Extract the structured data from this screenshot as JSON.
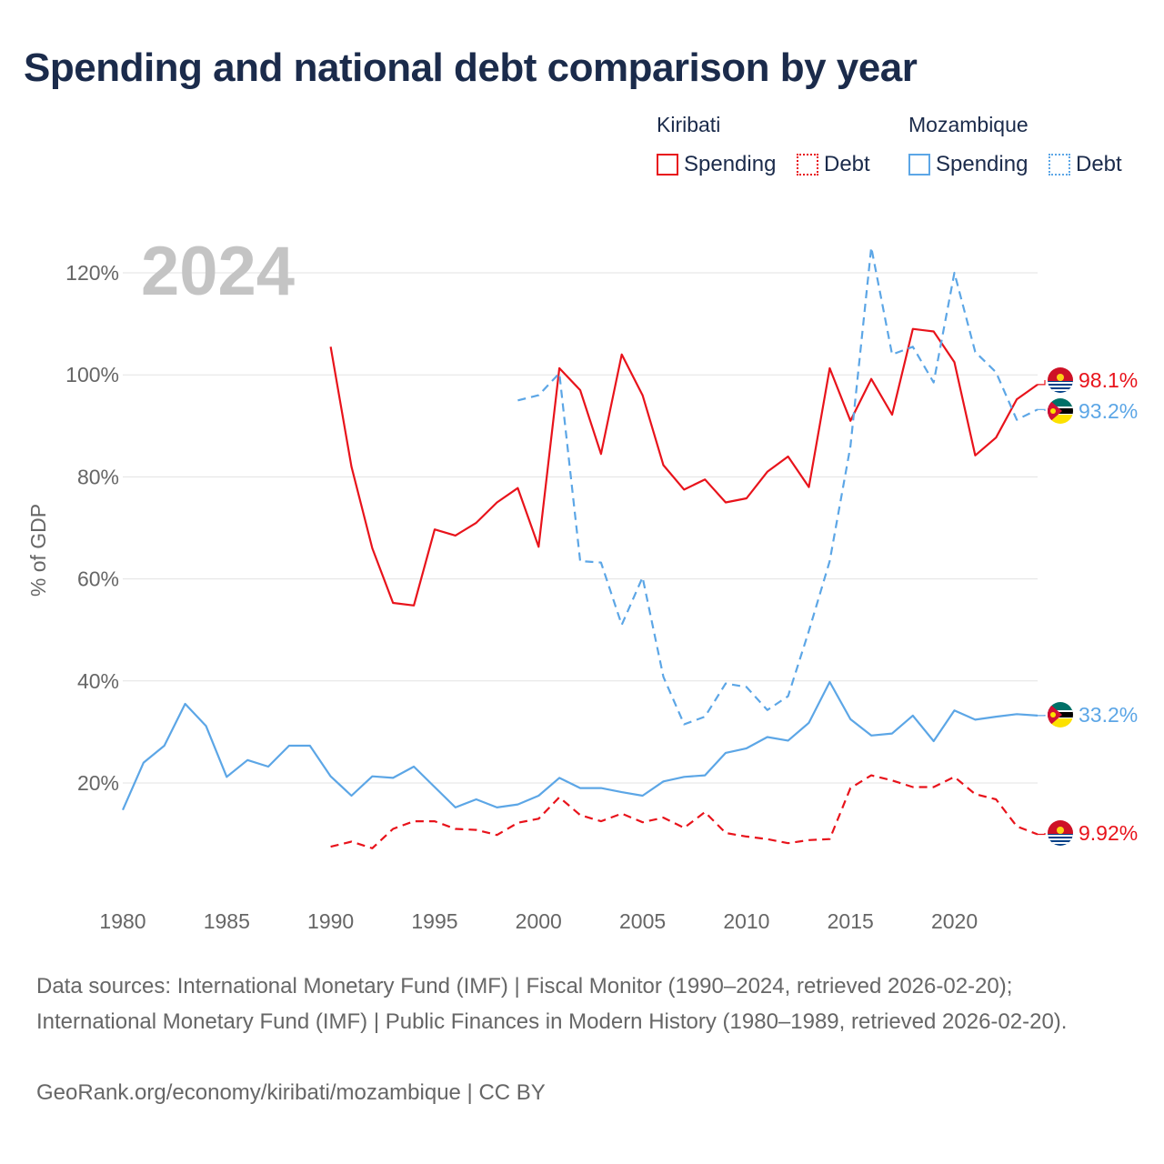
{
  "title": "Spending and national debt comparison by year",
  "legend": {
    "groups": [
      {
        "country": "Kiribati",
        "spending_label": "Spending",
        "debt_label": "Debt"
      },
      {
        "country": "Mozambique",
        "spending_label": "Spending",
        "debt_label": "Debt"
      }
    ]
  },
  "colors": {
    "kiribati": "#e8131b",
    "mozambique": "#5ca6e6",
    "grid": "#e3e3e3",
    "axis_text": "#666666",
    "year_watermark": "#c4c4c4"
  },
  "chart_data": {
    "type": "line",
    "title": "Spending and national debt comparison by year",
    "xlabel": "",
    "ylabel": "% of GDP",
    "xlim": [
      1980,
      2024
    ],
    "ylim": [
      0,
      130
    ],
    "x_ticks": [
      1980,
      1985,
      1990,
      1995,
      2000,
      2005,
      2010,
      2015,
      2020
    ],
    "y_ticks": [
      20,
      40,
      60,
      80,
      100,
      120
    ],
    "y_tick_labels": [
      "20%",
      "40%",
      "60%",
      "80%",
      "100%",
      "120%"
    ],
    "year_label": "2024",
    "series": [
      {
        "name": "Kiribati Spending",
        "country": "Kiribati",
        "measure": "Spending",
        "style": "solid",
        "color": "#e8131b",
        "x": [
          1990,
          1991,
          1992,
          1993,
          1994,
          1995,
          1996,
          1997,
          1998,
          1999,
          2000,
          2001,
          2002,
          2003,
          2004,
          2005,
          2006,
          2007,
          2008,
          2009,
          2010,
          2011,
          2012,
          2013,
          2014,
          2015,
          2016,
          2017,
          2018,
          2019,
          2020,
          2021,
          2022,
          2023,
          2024
        ],
        "values": [
          105.5,
          82,
          66,
          55.3,
          54.8,
          69.7,
          68.5,
          71,
          75,
          77.8,
          66.3,
          101.3,
          97,
          84.5,
          104,
          96,
          82.3,
          77.5,
          79.5,
          75,
          75.8,
          81,
          84,
          78,
          101.3,
          91,
          99.2,
          92.2,
          109,
          108.5,
          102.5,
          84.2,
          87.7,
          95.2,
          98.1
        ],
        "end_label": "98.1%"
      },
      {
        "name": "Kiribati Debt",
        "country": "Kiribati",
        "measure": "Debt",
        "style": "dashed",
        "color": "#e8131b",
        "x": [
          1990,
          1991,
          1992,
          1993,
          1994,
          1995,
          1996,
          1997,
          1998,
          1999,
          2000,
          2001,
          2002,
          2003,
          2004,
          2005,
          2006,
          2007,
          2008,
          2009,
          2010,
          2011,
          2012,
          2013,
          2014,
          2015,
          2016,
          2017,
          2018,
          2019,
          2020,
          2021,
          2022,
          2023,
          2024
        ],
        "values": [
          7.5,
          8.5,
          7.2,
          11,
          12.5,
          12.5,
          11,
          10.8,
          9.8,
          12.2,
          13,
          17.2,
          13.7,
          12.5,
          14,
          12.3,
          13.2,
          11.2,
          14.3,
          10.2,
          9.5,
          9,
          8.2,
          8.8,
          9,
          19,
          21.5,
          20.5,
          19.2,
          19.2,
          21.2,
          17.8,
          16.8,
          11.5,
          9.92
        ],
        "end_label": "9.92%"
      },
      {
        "name": "Mozambique Spending",
        "country": "Mozambique",
        "measure": "Spending",
        "style": "solid",
        "color": "#5ca6e6",
        "x": [
          1980,
          1981,
          1982,
          1983,
          1984,
          1985,
          1986,
          1987,
          1988,
          1989,
          1990,
          1991,
          1992,
          1993,
          1994,
          1995,
          1996,
          1997,
          1998,
          1999,
          2000,
          2001,
          2002,
          2003,
          2004,
          2005,
          2006,
          2007,
          2008,
          2009,
          2010,
          2011,
          2012,
          2013,
          2014,
          2015,
          2016,
          2017,
          2018,
          2019,
          2020,
          2021,
          2022,
          2023,
          2024
        ],
        "values": [
          14.7,
          24,
          27.3,
          35.5,
          31.2,
          21.2,
          24.5,
          23.2,
          27.3,
          27.3,
          21.3,
          17.5,
          21.3,
          21,
          23.2,
          19.2,
          15.2,
          16.8,
          15.2,
          15.8,
          17.5,
          21,
          19,
          19,
          18.2,
          17.5,
          20.3,
          21.2,
          21.5,
          25.9,
          26.8,
          29,
          28.3,
          31.8,
          39.8,
          32.5,
          29.3,
          29.7,
          33.2,
          28.2,
          34.2,
          32.4,
          33,
          33.5,
          33.2
        ],
        "end_label": "33.2%"
      },
      {
        "name": "Mozambique Debt",
        "country": "Mozambique",
        "measure": "Debt",
        "style": "dashed",
        "color": "#5ca6e6",
        "x": [
          1999,
          2000,
          2001,
          2002,
          2003,
          2004,
          2005,
          2006,
          2007,
          2008,
          2009,
          2010,
          2011,
          2012,
          2013,
          2014,
          2015,
          2016,
          2017,
          2018,
          2019,
          2020,
          2021,
          2022,
          2023,
          2024
        ],
        "values": [
          95,
          96,
          100.3,
          63.5,
          63.2,
          51,
          60.3,
          40.8,
          31.5,
          33,
          39.5,
          38.8,
          34.3,
          37,
          49.8,
          63.5,
          86,
          125,
          104,
          105.5,
          98.5,
          120,
          104.5,
          100.5,
          91.2,
          93.2
        ],
        "end_label": "93.2%"
      }
    ]
  },
  "footer": {
    "source": "Data sources: International Monetary Fund (IMF) | Fiscal Monitor (1990–2024, retrieved 2026-02-20); International Monetary Fund (IMF) | Public Finances in Modern History (1980–1989, retrieved 2026-02-20).",
    "credit": "GeoRank.org/economy/kiribati/mozambique | CC BY"
  }
}
